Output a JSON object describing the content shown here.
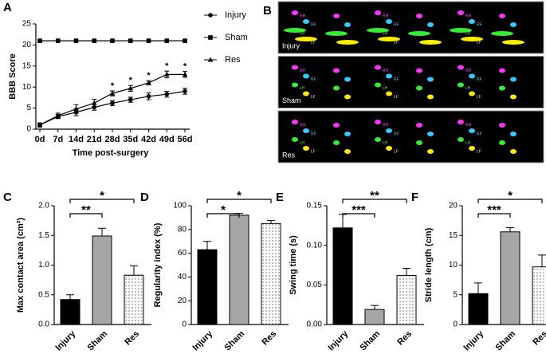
{
  "chart_data": [
    {
      "panel": "A",
      "type": "line",
      "ylabel": "BBB Score",
      "xlabel": "Time post-surgery",
      "categories": [
        "0d",
        "7d",
        "14d",
        "21d",
        "28d",
        "35d",
        "42d",
        "49d",
        "56d"
      ],
      "ylim": [
        0,
        25
      ],
      "yticks": [
        0,
        5,
        10,
        15,
        20,
        25
      ],
      "series": [
        {
          "name": "Injury",
          "marker": "circle",
          "color": "#000000",
          "values": [
            1,
            3,
            4,
            5.2,
            6.2,
            7,
            7.8,
            8.3,
            9
          ],
          "errors": [
            0.5,
            0.5,
            0.8,
            0.7,
            0.6,
            0.6,
            0.8,
            0.7,
            0.7
          ]
        },
        {
          "name": "Sham",
          "marker": "square",
          "color": "#000000",
          "values": [
            21,
            21,
            21,
            21,
            21,
            21,
            21,
            21,
            21
          ]
        },
        {
          "name": "Res",
          "marker": "triangle",
          "color": "#000000",
          "values": [
            1,
            3.2,
            4.8,
            6.2,
            8.5,
            9.7,
            11,
            13,
            13
          ],
          "errors": [
            0.3,
            0.6,
            1,
            0.9,
            0.6,
            0.7,
            0.5,
            0.8,
            0.7
          ]
        }
      ],
      "annotations": [
        {
          "text": "*",
          "at": "28d"
        },
        {
          "text": "*",
          "at": "35d"
        },
        {
          "text": "*",
          "at": "42d"
        },
        {
          "text": "*",
          "at": "49d"
        },
        {
          "text": "*",
          "at": "56d"
        }
      ]
    },
    {
      "panel": "C",
      "type": "bar",
      "ylabel": "Max contact area (cm²)",
      "categories": [
        "Injury",
        "Sham",
        "Res"
      ],
      "fills": [
        "#000000",
        "#a6a6a6",
        "dots"
      ],
      "values": [
        0.42,
        1.49,
        0.83
      ],
      "errors": [
        0.08,
        0.13,
        0.16
      ],
      "ylim": [
        0,
        2
      ],
      "yticks": [
        {
          "value": 0,
          "label": "0.0"
        },
        0.5,
        {
          "value": 1,
          "label": "1.0"
        },
        1.5,
        {
          "value": 2,
          "label": "2.0"
        }
      ],
      "brackets": [
        {
          "text": "**",
          "from": "Injury",
          "to": "Sham"
        },
        {
          "text": "*",
          "from": "Injury",
          "to": "Res"
        }
      ]
    },
    {
      "panel": "D",
      "type": "bar",
      "ylabel": "Regularity index (%)",
      "categories": [
        "Injury",
        "Sham",
        "Res"
      ],
      "fills": [
        "#000000",
        "#a6a6a6",
        "dots"
      ],
      "values": [
        63,
        92,
        85
      ],
      "errors": [
        7,
        1.5,
        2.5
      ],
      "ylim": [
        0,
        100
      ],
      "yticks": [
        0,
        20,
        40,
        60,
        80,
        100
      ],
      "brackets": [
        {
          "text": "*",
          "from": "Injury",
          "to": "Sham"
        },
        {
          "text": "*",
          "from": "Injury",
          "to": "Res"
        }
      ]
    },
    {
      "panel": "E",
      "type": "bar",
      "ylabel": "Swing time (s)",
      "categories": [
        "Injury",
        "Sham",
        "Res"
      ],
      "fills": [
        "#000000",
        "#a6a6a6",
        "dots"
      ],
      "values": [
        0.122,
        0.019,
        0.062
      ],
      "errors": [
        0.017,
        0.005,
        0.009
      ],
      "ylim": [
        0,
        0.15
      ],
      "yticks": [
        {
          "value": 0,
          "label": "0.00"
        },
        0.05,
        {
          "value": 0.1,
          "label": "0.10"
        },
        0.15
      ],
      "brackets": [
        {
          "text": "***",
          "from": "Injury",
          "to": "Sham"
        },
        {
          "text": "**",
          "from": "Injury",
          "to": "Res"
        }
      ]
    },
    {
      "panel": "F",
      "type": "bar",
      "ylabel": "Stride length (cm)",
      "categories": [
        "Injury",
        "Sham",
        "Res"
      ],
      "fills": [
        "#000000",
        "#a6a6a6",
        "dots"
      ],
      "values": [
        5.2,
        15.6,
        9.7
      ],
      "errors": [
        1.8,
        0.7,
        2
      ],
      "ylim": [
        0,
        20
      ],
      "yticks": [
        0,
        5,
        10,
        15,
        20
      ],
      "brackets": [
        {
          "text": "***",
          "from": "Injury",
          "to": "Sham"
        },
        {
          "text": "*",
          "from": "Injury",
          "to": "Res"
        }
      ]
    },
    {
      "panel": "B",
      "type": "image",
      "rows": [
        {
          "label": "Injury"
        },
        {
          "label": "Sham"
        },
        {
          "label": "Res"
        }
      ],
      "paw_labels": [
        "RH",
        "RF",
        "LH",
        "LF"
      ]
    }
  ]
}
